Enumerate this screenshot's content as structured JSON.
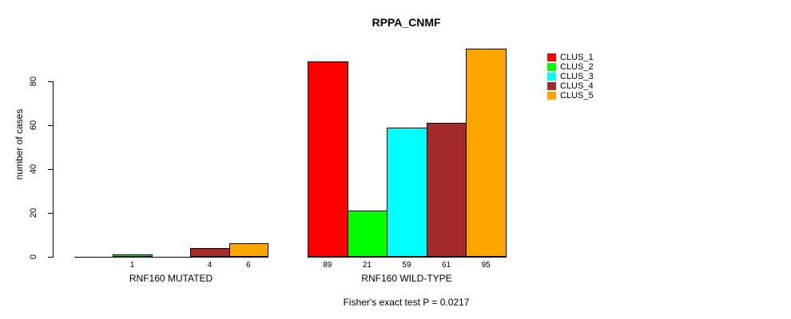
{
  "chart_data": {
    "type": "bar",
    "title": "RPPA_CNMF",
    "ylabel": "number of cases",
    "xlabel": "",
    "note": "Fisher's exact test P = 0.0217",
    "ylim": [
      0,
      95
    ],
    "yticks": [
      0,
      20,
      40,
      60,
      80
    ],
    "grid": false,
    "legend_position": "right-inside",
    "series": [
      {
        "name": "CLUS_1",
        "color": "#FF0000"
      },
      {
        "name": "CLUS_2",
        "color": "#00FF00"
      },
      {
        "name": "CLUS_3",
        "color": "#00FFFF"
      },
      {
        "name": "CLUS_4",
        "color": "#A52A2A"
      },
      {
        "name": "CLUS_5",
        "color": "#FFA500"
      }
    ],
    "categories": [
      "RNF160 MUTATED",
      "RNF160 WILD-TYPE"
    ],
    "groups": [
      {
        "category": "RNF160 MUTATED",
        "values": [
          0,
          1,
          0,
          4,
          6
        ],
        "bar_labels": [
          "",
          "1",
          "",
          "4",
          "6"
        ]
      },
      {
        "category": "RNF160 WILD-TYPE",
        "values": [
          89,
          21,
          59,
          61,
          95
        ],
        "bar_labels": [
          "89",
          "21",
          "59",
          "61",
          "95"
        ]
      }
    ]
  }
}
